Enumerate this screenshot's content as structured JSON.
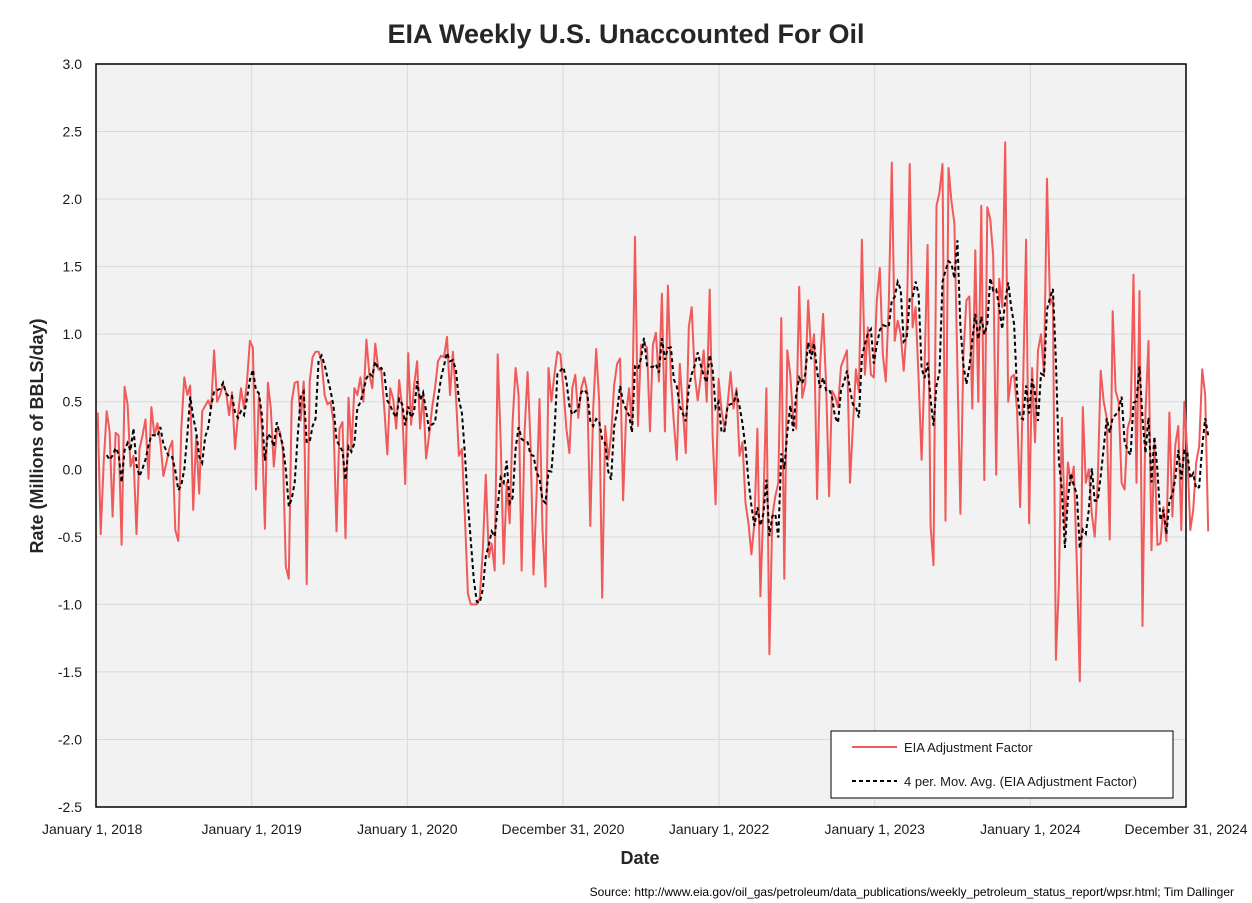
{
  "chart_data": {
    "type": "line",
    "title": "EIA Weekly U.S. Unaccounted For Oil",
    "xlabel": "Date",
    "ylabel": "Rate (Millions of BBLS/day)",
    "source": "Source: http://www.eia.gov/oil_gas/petroleum/data_publications/weekly_petroleum_status_report/wpsr.html; Tim Dallinger",
    "ylim": [
      -2.5,
      3.0
    ],
    "yticks": [
      "-2.5",
      "-2.0",
      "-1.5",
      "-1.0",
      "-0.5",
      "0.0",
      "0.5",
      "1.0",
      "1.5",
      "2.0",
      "2.5",
      "3.0"
    ],
    "xlim": [
      "2018-01-01",
      "2024-12-31"
    ],
    "xticks": [
      {
        "date": "2018-01-01",
        "label": "January 1, 2018"
      },
      {
        "date": "2019-01-01",
        "label": "January 1, 2019"
      },
      {
        "date": "2020-01-01",
        "label": "January 1, 2020"
      },
      {
        "date": "2020-12-31",
        "label": "December 31, 2020"
      },
      {
        "date": "2022-01-01",
        "label": "January 1, 2022"
      },
      {
        "date": "2023-01-01",
        "label": "January 1, 2023"
      },
      {
        "date": "2024-01-01",
        "label": "January 1, 2024"
      },
      {
        "date": "2024-12-31",
        "label": "December 31, 2024"
      }
    ],
    "grid": true,
    "legend_position": "bottom-right",
    "series": [
      {
        "name": "EIA Adjustment Factor",
        "color": "#f05a5a",
        "style": "solid",
        "start": "2018-01-05",
        "interval_days": 7,
        "values": [
          0.42,
          -0.48,
          0.05,
          0.43,
          0.28,
          -0.35,
          0.27,
          0.25,
          -0.56,
          0.61,
          0.48,
          0.02,
          0.1,
          -0.48,
          0.15,
          0.25,
          0.37,
          -0.07,
          0.46,
          0.25,
          0.34,
          0.2,
          -0.05,
          0.05,
          0.15,
          0.21,
          -0.45,
          -0.53,
          0.3,
          0.68,
          0.55,
          0.62,
          -0.3,
          0.24,
          -0.18,
          0.43,
          0.47,
          0.51,
          0.45,
          0.88,
          0.5,
          0.55,
          0.63,
          0.57,
          0.4,
          0.57,
          0.15,
          0.4,
          0.6,
          0.45,
          0.65,
          0.95,
          0.9,
          -0.15,
          0.55,
          0.3,
          -0.44,
          0.64,
          0.45,
          0.02,
          0.28,
          0.28,
          0.15,
          -0.72,
          -0.81,
          0.5,
          0.64,
          0.65,
          0.36,
          0.65,
          -0.85,
          0.65,
          0.83,
          0.87,
          0.87,
          0.8,
          0.55,
          0.48,
          0.5,
          0.35,
          -0.46,
          0.3,
          0.35,
          -0.51,
          0.53,
          0.15,
          0.6,
          0.55,
          0.68,
          0.5,
          0.96,
          0.7,
          0.6,
          0.93,
          0.74,
          0.73,
          0.45,
          0.11,
          0.6,
          0.52,
          0.3,
          0.66,
          0.45,
          -0.11,
          0.86,
          0.33,
          0.62,
          0.8,
          0.3,
          0.55,
          0.08,
          0.25,
          0.45,
          0.6,
          0.8,
          0.84,
          0.83,
          0.98,
          0.55,
          0.87,
          0.55,
          0.1,
          0.15,
          -0.35,
          -0.92,
          -1.0,
          -1.0,
          -1.0,
          -0.95,
          -0.6,
          -0.04,
          -0.65,
          -0.55,
          -0.75,
          0.85,
          0.2,
          -0.7,
          -0.1,
          -0.4,
          0.35,
          0.75,
          0.55,
          -0.75,
          0.28,
          0.72,
          0.18,
          -0.78,
          -0.2,
          0.52,
          -0.45,
          -0.87,
          0.75,
          0.5,
          0.7,
          0.87,
          0.85,
          0.6,
          0.3,
          0.12,
          0.6,
          0.7,
          0.38,
          0.6,
          0.68,
          0.57,
          -0.42,
          0.45,
          0.89,
          0.5,
          -0.95,
          0.32,
          0.07,
          0.25,
          0.62,
          0.78,
          0.82,
          -0.23,
          0.4,
          0.6,
          0.32,
          1.72,
          0.32,
          0.92,
          0.93,
          0.9,
          0.28,
          0.92,
          1.01,
          0.65,
          1.3,
          0.28,
          1.36,
          0.67,
          0.35,
          0.07,
          0.78,
          0.45,
          0.12,
          1.05,
          1.2,
          0.7,
          0.51,
          0.68,
          0.88,
          0.5,
          1.33,
          0.25,
          -0.26,
          0.67,
          0.43,
          0.3,
          0.48,
          0.72,
          0.45,
          0.6,
          0.1,
          0.2,
          -0.25,
          -0.4,
          -0.63,
          -0.4,
          0.3,
          -0.94,
          -0.27,
          0.6,
          -1.37,
          -0.35,
          -0.2,
          -0.1,
          1.12,
          -0.81,
          0.88,
          0.7,
          0.36,
          0.3,
          1.35,
          0.53,
          0.63,
          1.25,
          0.85,
          1.0,
          -0.22,
          0.78,
          1.15,
          0.63,
          -0.2,
          0.58,
          0.54,
          0.46,
          0.76,
          0.82,
          0.88,
          -0.1,
          0.32,
          0.74,
          0.57,
          1.7,
          0.7,
          1.05,
          0.7,
          0.68,
          1.25,
          1.49,
          0.85,
          0.65,
          1.23,
          2.27,
          0.95,
          1.1,
          1.0,
          0.73,
          1.05,
          2.26,
          1.05,
          1.2,
          0.67,
          0.07,
          0.76,
          1.66,
          -0.42,
          -0.71,
          1.95,
          2.05,
          2.26,
          -0.38,
          2.23,
          1.98,
          1.82,
          0.75,
          -0.33,
          0.85,
          1.25,
          1.28,
          0.45,
          1.62,
          0.5,
          1.95,
          -0.08,
          1.94,
          1.85,
          1.58,
          -0.04,
          1.41,
          1.2,
          2.42,
          0.5,
          0.68,
          0.7,
          0.43,
          -0.28,
          0.63,
          1.7,
          -0.4,
          0.75,
          0.2,
          0.88,
          1.0,
          0.7,
          2.15,
          1.22,
          1.27,
          -1.41,
          -0.85,
          0.38,
          -0.45,
          0.05,
          -0.1,
          0.02,
          -0.7,
          -1.57,
          0.46,
          -0.1,
          0.0,
          -0.33,
          -0.5,
          -0.1,
          0.73,
          0.5,
          0.38,
          -0.52,
          1.17,
          0.58,
          0.5,
          -0.1,
          -0.15,
          0.3,
          0.38,
          1.44,
          -0.1,
          1.32,
          -1.16,
          0.42,
          0.95,
          -0.6,
          0.2,
          -0.56,
          -0.55,
          -0.28,
          -0.53,
          0.42,
          -0.35,
          0.18,
          0.32,
          -0.45,
          0.5,
          0.13,
          -0.45,
          -0.3,
          0.05,
          0.17,
          0.74,
          0.55,
          -0.46
        ]
      },
      {
        "name": "4 per. Mov. Avg. (EIA Adjustment Factor)",
        "color": "#000000",
        "style": "dashed",
        "moving_average_of": "EIA Adjustment Factor",
        "period": 4
      }
    ]
  }
}
